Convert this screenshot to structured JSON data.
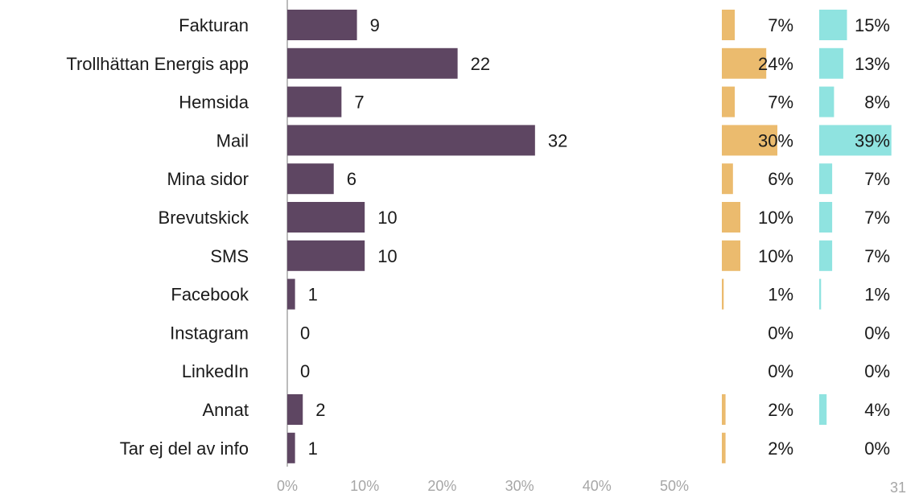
{
  "page_number": "31",
  "chart_data": [
    {
      "type": "bar",
      "orientation": "horizontal",
      "categories": [
        "Fakturan",
        "Trollhättan Energis app",
        "Hemsida",
        "Mail",
        "Mina sidor",
        "Brevutskick",
        "SMS",
        "Facebook",
        "Instagram",
        "LinkedIn",
        "Annat",
        "Tar ej del av info"
      ],
      "values": [
        9,
        22,
        7,
        32,
        6,
        10,
        10,
        1,
        0,
        0,
        2,
        1
      ],
      "value_labels": [
        "9",
        "22",
        "7",
        "32",
        "6",
        "10",
        "10",
        "1",
        "0",
        "0",
        "2",
        "1"
      ],
      "xlim": [
        0,
        50
      ],
      "xticks": [
        "0%",
        "10%",
        "20%",
        "30%",
        "40%",
        "50%"
      ],
      "color": "#5e4662",
      "grid": false,
      "title": "",
      "xlabel": "",
      "ylabel": ""
    },
    {
      "type": "bar",
      "orientation": "horizontal",
      "values": [
        7,
        24,
        7,
        30,
        6,
        10,
        10,
        1,
        0,
        0,
        2,
        2
      ],
      "value_labels": [
        "7%",
        "24%",
        "7%",
        "30%",
        "6%",
        "10%",
        "10%",
        "1%",
        "0%",
        "0%",
        "2%",
        "2%"
      ],
      "color": "#ebbb6e"
    },
    {
      "type": "bar",
      "orientation": "horizontal",
      "values": [
        15,
        13,
        8,
        39,
        7,
        7,
        7,
        1,
        0,
        0,
        4,
        0
      ],
      "value_labels": [
        "15%",
        "13%",
        "8%",
        "39%",
        "7%",
        "7%",
        "7%",
        "1%",
        "0%",
        "0%",
        "4%",
        "0%"
      ],
      "color": "#8fe3e0"
    }
  ]
}
